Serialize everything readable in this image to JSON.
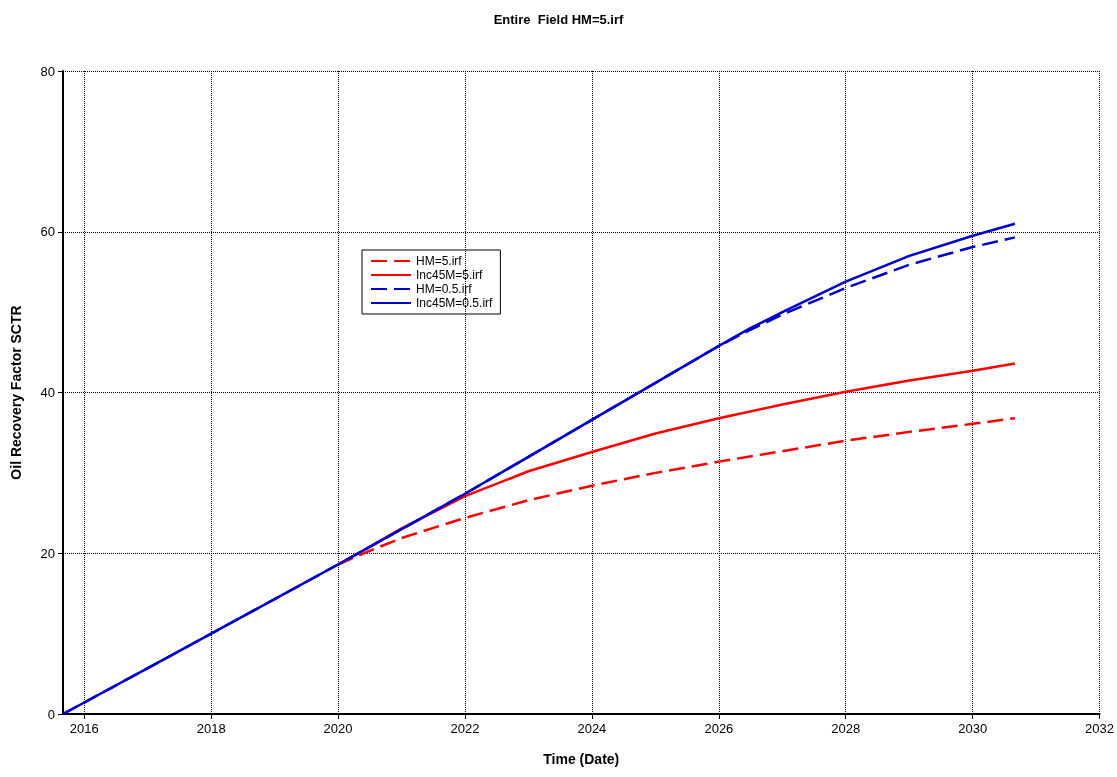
{
  "chart_data": {
    "type": "line",
    "title": "Entire  Field HM=5.irf",
    "xlabel": "Time (Date)",
    "ylabel": "Oil Recovery Factor SCTR",
    "xlim": [
      "2015-09",
      "2032-01"
    ],
    "xticks": [
      {
        "value": "2016",
        "label": "2016"
      },
      {
        "value": "2018",
        "label": "2018"
      },
      {
        "value": "2020",
        "label": "2020"
      },
      {
        "value": "2022",
        "label": "2022"
      },
      {
        "value": "2024",
        "label": "2024"
      },
      {
        "value": "2026",
        "label": "2026"
      },
      {
        "value": "2028",
        "label": "2028"
      },
      {
        "value": "2030",
        "label": "2030"
      },
      {
        "value": "2032",
        "label": "2032"
      }
    ],
    "ylim": [
      0,
      80
    ],
    "yticks": [
      0,
      20,
      40,
      60,
      80
    ],
    "grid": true,
    "legend": "top left",
    "marker": "none",
    "series": [
      {
        "name": "HM=5.irf",
        "color": "#ff0000",
        "line_style": "dashed",
        "x": [
          "2020-01",
          "2020-07",
          "2021-01",
          "2022-01",
          "2023-01",
          "2024-01",
          "2025-01",
          "2026-01",
          "2027-01",
          "2028-01",
          "2029-01",
          "2030-01",
          "2030-09"
        ],
        "values": [
          18.6,
          20.3,
          21.9,
          24.4,
          26.6,
          28.4,
          30.0,
          31.4,
          32.7,
          34.0,
          35.1,
          36.1,
          36.8
        ]
      },
      {
        "name": "Inc45M=5.irf",
        "color": "#ff0000",
        "line_style": "solid",
        "x": [
          "2020-01",
          "2020-07",
          "2021-01",
          "2022-01",
          "2023-01",
          "2024-01",
          "2025-01",
          "2026-01",
          "2027-01",
          "2028-01",
          "2029-01",
          "2030-01",
          "2030-09"
        ],
        "values": [
          18.6,
          20.8,
          23.1,
          27.1,
          30.2,
          32.6,
          34.9,
          36.8,
          38.5,
          40.1,
          41.5,
          42.7,
          43.6
        ]
      },
      {
        "name": "HM=0.5.irf",
        "color": "#0000cc",
        "line_style": "dashed",
        "x": [
          "2015-09",
          "2017-01",
          "2018-01",
          "2019-01",
          "2020-01",
          "2021-01",
          "2022-01",
          "2023-01",
          "2024-01",
          "2025-01",
          "2026-01",
          "2026-07",
          "2027-01",
          "2028-01",
          "2029-01",
          "2030-01",
          "2030-09"
        ],
        "values": [
          0,
          5.7,
          10.0,
          14.3,
          18.6,
          23.0,
          27.4,
          32.0,
          36.6,
          41.2,
          45.8,
          47.8,
          49.7,
          53.0,
          55.9,
          58.1,
          59.3
        ]
      },
      {
        "name": "Inc45M=0.5.irf",
        "color": "#0000cc",
        "line_style": "solid",
        "x": [
          "2015-09",
          "2017-01",
          "2018-01",
          "2019-01",
          "2020-01",
          "2021-01",
          "2022-01",
          "2023-01",
          "2024-01",
          "2025-01",
          "2026-01",
          "2026-07",
          "2027-01",
          "2028-01",
          "2029-01",
          "2030-01",
          "2030-09"
        ],
        "values": [
          0,
          5.7,
          10.0,
          14.3,
          18.6,
          23.0,
          27.4,
          32.0,
          36.6,
          41.2,
          45.8,
          48.0,
          50.0,
          53.8,
          57.0,
          59.5,
          61.0
        ]
      }
    ]
  }
}
